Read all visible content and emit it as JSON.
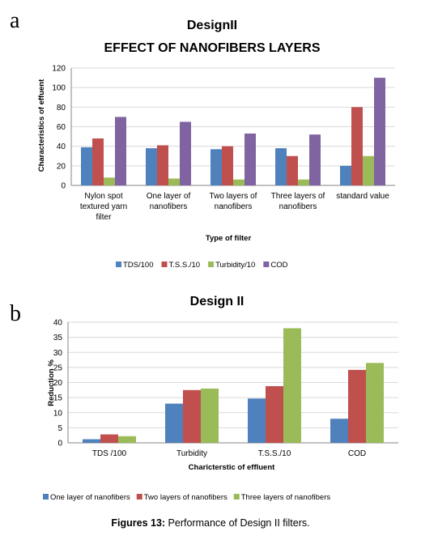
{
  "caption": {
    "label": "Figures 13:",
    "text": " Performance of Design II filters."
  },
  "chart_data": [
    {
      "panel": "a",
      "type": "bar",
      "title": "DesignII",
      "subtitle": "EFFECT OF NANOFIBERS LAYERS",
      "ylabel": "Characteristics of effuent",
      "xlabel": "Type of filter",
      "ylim": [
        0,
        120
      ],
      "yticks": [
        0,
        20,
        40,
        60,
        80,
        100,
        120
      ],
      "grid": true,
      "legend_position": "bottom",
      "categories": [
        [
          "Nylon spot",
          "textured yarn",
          "filter"
        ],
        [
          "One layer of",
          "nanofibers"
        ],
        [
          "Two layers of",
          "nanofibers"
        ],
        [
          "Three layers of",
          "nanofibers"
        ],
        [
          "standard value"
        ]
      ],
      "series": [
        {
          "name": "TDS/100",
          "color": "#4f81bd",
          "values": [
            39,
            38,
            37,
            38,
            20
          ]
        },
        {
          "name": "T.S.S./10",
          "color": "#c0504d",
          "values": [
            48,
            41,
            40,
            30,
            80
          ]
        },
        {
          "name": "Turbidity/10",
          "color": "#9bbb59",
          "values": [
            8,
            7,
            6,
            6,
            30
          ]
        },
        {
          "name": "COD",
          "color": "#8064a2",
          "values": [
            70,
            65,
            53,
            52,
            110
          ]
        }
      ]
    },
    {
      "panel": "b",
      "type": "bar",
      "title": "Design II",
      "ylabel": "Reduction %",
      "xlabel": "Charicterstic of effluent",
      "ylim": [
        0,
        40
      ],
      "yticks": [
        0,
        5,
        10,
        15,
        20,
        25,
        30,
        35,
        40
      ],
      "grid": true,
      "legend_position": "bottom",
      "categories": [
        [
          "TDS /100"
        ],
        [
          "Turbidity"
        ],
        [
          "T.S.S./10"
        ],
        [
          "COD"
        ]
      ],
      "series": [
        {
          "name": "One layer of nanofibers",
          "color": "#4f81bd",
          "values": [
            1.2,
            13,
            14.7,
            8
          ]
        },
        {
          "name": "Two layers of nanofibers",
          "color": "#c0504d",
          "values": [
            2.8,
            17.5,
            18.8,
            24.2
          ]
        },
        {
          "name": "Three layers of nanofibers",
          "color": "#9bbb59",
          "values": [
            2.2,
            18,
            38,
            26.5
          ]
        }
      ]
    }
  ]
}
